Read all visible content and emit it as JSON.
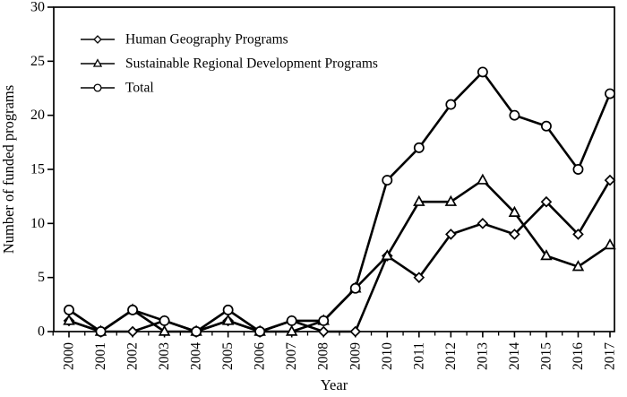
{
  "chart_data": {
    "type": "line",
    "title": "",
    "xlabel": "Year",
    "ylabel": "Number of funded programs",
    "x": [
      "2000",
      "2001",
      "2002",
      "2003",
      "2004",
      "2005",
      "2006",
      "2007",
      "2008",
      "2009",
      "2010",
      "2011",
      "2012",
      "2013",
      "2014",
      "2015",
      "2016",
      "2017"
    ],
    "series": [
      {
        "name": "Human Geography Programs",
        "marker": "diamond",
        "values": [
          1,
          0,
          0,
          1,
          0,
          1,
          0,
          1,
          0,
          0,
          7,
          5,
          9,
          10,
          9,
          12,
          9,
          14
        ]
      },
      {
        "name": "Sustainable Regional Development Programs",
        "marker": "triangle",
        "values": [
          1,
          0,
          2,
          0,
          0,
          1,
          0,
          0,
          1,
          4,
          7,
          12,
          12,
          14,
          11,
          7,
          6,
          8
        ]
      },
      {
        "name": "Total",
        "marker": "circle",
        "values": [
          2,
          0,
          2,
          1,
          0,
          2,
          0,
          1,
          1,
          4,
          14,
          17,
          21,
          24,
          20,
          19,
          15,
          22
        ]
      }
    ],
    "ylim": [
      0,
      30
    ],
    "yticks": [
      0,
      5,
      10,
      15,
      20,
      25,
      30
    ],
    "grid": false,
    "legend_position": "top-left",
    "line_color": "#000000",
    "marker_fill": "#ffffff",
    "background": "#ffffff"
  }
}
